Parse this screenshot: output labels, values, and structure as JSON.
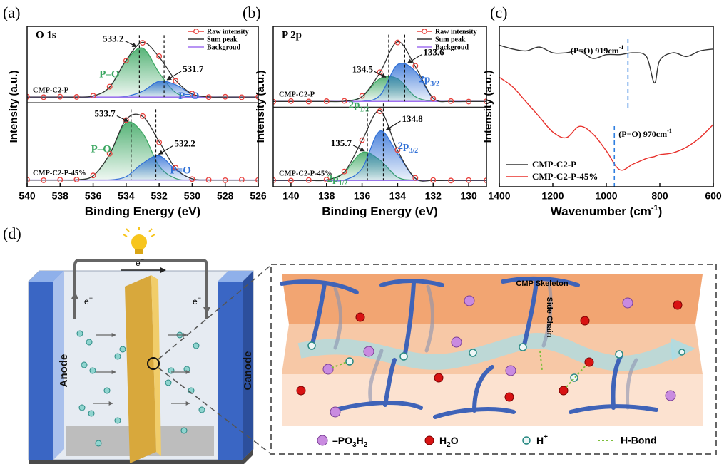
{
  "chart_data": [
    {
      "type": "xps",
      "panel_label": "(a)",
      "title": "O 1s",
      "xlabel": "Binding Energy (eV)",
      "ylabel": "Intensity (a.u.)",
      "xlim": [
        540,
        526
      ],
      "xticks": [
        540,
        538,
        536,
        534,
        532,
        530,
        528,
        526
      ],
      "ylim": [
        -0.08,
        1.85
      ],
      "legend": [
        {
          "name": "Raw intensity",
          "color": "#e8413c"
        },
        {
          "name": "Sum peak",
          "color": "#333333"
        },
        {
          "name": "Backgroud",
          "color": "#a070f0"
        }
      ],
      "x": [
        540,
        539,
        538,
        537,
        536,
        535,
        534,
        533,
        532,
        531,
        530,
        529,
        528,
        527,
        526
      ],
      "spectra": [
        {
          "label": "CMP-C2-P",
          "background": [
            1,
            1,
            1,
            1,
            1,
            1,
            1,
            1,
            1,
            1,
            1,
            1,
            1,
            1,
            1
          ],
          "raw": [
            1.003,
            0.998,
            1.004,
            1.001,
            1.016,
            1.125,
            1.437,
            1.652,
            1.49,
            1.194,
            1.041,
            0.999,
            1.003,
            0.997,
            1.002
          ],
          "sum": [
            1,
            1,
            1,
            1,
            1.012,
            1.119,
            1.444,
            1.658,
            1.481,
            1.201,
            1.038,
            1.002,
            1,
            1,
            1
          ],
          "peaks": [
            {
              "label": "P–O",
              "center": 533.2,
              "color": "#3aa660",
              "values": [
                1,
                1,
                1,
                1,
                1.012,
                1.119,
                1.436,
                1.588,
                1.292,
                1.053,
                1.004,
                1,
                1,
                1,
                1
              ]
            },
            {
              "label": "P=O",
              "center": 531.7,
              "color": "#2f6fd6",
              "values": [
                1,
                1,
                1,
                1,
                1,
                1,
                1.008,
                1.07,
                1.189,
                1.148,
                1.034,
                1.002,
                1,
                1,
                1
              ]
            }
          ]
        },
        {
          "label": "CMP-C2-P-45%",
          "background": [
            0,
            0,
            0,
            0,
            0,
            0,
            0,
            0,
            0,
            0,
            0,
            0,
            0,
            0,
            0
          ],
          "raw": [
            0.004,
            -0.002,
            0.003,
            0.006,
            0.055,
            0.318,
            0.722,
            0.771,
            0.455,
            0.148,
            0.012,
            0.003,
            -0.002,
            0.004,
            0.001
          ],
          "sum": [
            0,
            0,
            0,
            0.003,
            0.051,
            0.312,
            0.729,
            0.766,
            0.463,
            0.142,
            0.016,
            0.001,
            0,
            0,
            0
          ],
          "peaks": [
            {
              "label": "P–O",
              "center": 533.7,
              "color": "#3aa660",
              "values": [
                0,
                0,
                0,
                0.003,
                0.051,
                0.31,
                0.688,
                0.564,
                0.17,
                0.019,
                0.001,
                0,
                0,
                0,
                0
              ]
            },
            {
              "label": "P=O",
              "center": 532.2,
              "color": "#2f6fd6",
              "values": [
                0,
                0,
                0,
                0,
                0,
                0.002,
                0.041,
                0.202,
                0.293,
                0.123,
                0.015,
                0.001,
                0,
                0,
                0
              ]
            }
          ]
        }
      ]
    },
    {
      "type": "xps",
      "panel_label": "(b)",
      "title": "P 2p",
      "xlabel": "Binding Energy (eV)",
      "ylabel": "Intensity (a.u.)",
      "xlim": [
        141,
        129
      ],
      "xticks": [
        140,
        138,
        136,
        134,
        132,
        130
      ],
      "ylim": [
        -0.08,
        1.95
      ],
      "legend": [
        {
          "name": "Raw intensity",
          "color": "#e8413c"
        },
        {
          "name": "Sum peak",
          "color": "#333333"
        },
        {
          "name": "Backgroud",
          "color": "#a070f0"
        }
      ],
      "x": [
        141,
        140,
        139,
        138,
        137,
        136,
        135,
        134,
        133,
        132,
        131,
        130,
        129
      ],
      "spectra": [
        {
          "label": "CMP-C2-P",
          "background": [
            1,
            1,
            1,
            1,
            1,
            1,
            1,
            1,
            1,
            1,
            1,
            1,
            1
          ],
          "raw": [
            0.996,
            1.004,
            0.999,
            1.003,
            1.007,
            1.07,
            1.37,
            1.746,
            1.45,
            1.036,
            1.004,
            0.998,
            1.002
          ],
          "sum": [
            1,
            1,
            1,
            1,
            1.003,
            1.062,
            1.362,
            1.755,
            1.441,
            1.043,
            1.001,
            1,
            1
          ],
          "peaks": [
            {
              "label": "2p",
              "subscript": "1/2",
              "center": 134.5,
              "color": "#3aa660",
              "values": [
                1,
                1,
                1,
                1,
                1.003,
                1.06,
                1.288,
                1.288,
                1.06,
                1.003,
                1,
                1,
                1
              ]
            },
            {
              "label": "2p",
              "subscript": "3/2",
              "center": 133.6,
              "color": "#2f6fd6",
              "values": [
                1,
                1,
                1,
                1,
                1,
                1.002,
                1.074,
                1.467,
                1.381,
                1.04,
                1.001,
                1,
                1
              ]
            }
          ]
        },
        {
          "label": "CMP-C2-P-45%",
          "background": [
            0,
            0,
            0,
            0,
            0,
            0,
            0,
            0,
            0,
            0,
            0,
            0,
            0
          ],
          "raw": [
            0.003,
            -0.003,
            0.004,
            0.01,
            0.112,
            0.51,
            0.876,
            0.385,
            0.031,
            0.004,
            -0.002,
            0.003,
            0.001
          ],
          "sum": [
            0,
            0,
            0,
            0.006,
            0.106,
            0.504,
            0.883,
            0.378,
            0.027,
            0,
            0,
            0,
            0
          ],
          "peaks": [
            {
              "label": "2p",
              "subscript": "1/2",
              "center": 135.7,
              "color": "#3aa660",
              "values": [
                0,
                0,
                0,
                0.006,
                0.101,
                0.354,
                0.259,
                0.04,
                0.003,
                0,
                0,
                0,
                0
              ]
            },
            {
              "label": "2p",
              "subscript": "3/2",
              "center": 134.8,
              "color": "#2f6fd6",
              "values": [
                0,
                0,
                0,
                0,
                0.005,
                0.15,
                0.624,
                0.338,
                0.024,
                0,
                0,
                0,
                0
              ]
            }
          ]
        }
      ]
    },
    {
      "type": "line",
      "panel_label": "(c)",
      "xlabel": "Wavenumber (cm",
      "xlabel_sup": "-1",
      "xlabel_end": ")",
      "ylabel": "Intensity (a.u.)",
      "xlim": [
        1400,
        600
      ],
      "xticks": [
        1400,
        1200,
        1000,
        800,
        600
      ],
      "ylim": [
        0.15,
        1.0
      ],
      "legend_loc": "lower left",
      "x": [
        1400,
        1350,
        1300,
        1250,
        1200,
        1150,
        1100,
        1050,
        1000,
        950,
        900,
        850,
        820,
        800,
        750,
        700,
        650,
        600
      ],
      "series": [
        {
          "name": "CMP-C2-P",
          "color": "#333333",
          "values": [
            0.9,
            0.88,
            0.87,
            0.89,
            0.86,
            0.86,
            0.87,
            0.83,
            0.85,
            0.85,
            0.86,
            0.84,
            0.7,
            0.82,
            0.86,
            0.84,
            0.87,
            0.88
          ]
        },
        {
          "name": "CMP-C2-P-45%",
          "color": "#e8312c",
          "values": [
            0.73,
            0.68,
            0.6,
            0.52,
            0.44,
            0.41,
            0.47,
            0.43,
            0.34,
            0.24,
            0.27,
            0.3,
            0.31,
            0.32,
            0.33,
            0.36,
            0.41,
            0.48
          ]
        }
      ],
      "markers": [
        {
          "x": 919,
          "label": "(P=O) 919cm",
          "sup": "-1",
          "color": "#2f7fe0"
        },
        {
          "x": 970,
          "label": "(P=O) 970cm",
          "sup": "-1",
          "color": "#2f7fe0"
        }
      ]
    }
  ],
  "diagram": {
    "panel_label": "(d)",
    "anode": "Anode",
    "cathode": "Canode",
    "electron": "e",
    "electron_sup": "−",
    "skeleton": "CMP Skeleton",
    "side_chain": "Side Chain",
    "legend": [
      {
        "parts": [
          "–PO",
          "3",
          "H",
          "2"
        ]
      },
      {
        "parts": [
          "H",
          "2",
          "O"
        ]
      },
      {
        "parts": [
          "H",
          "+"
        ]
      },
      {
        "parts": [
          "H-Bond"
        ]
      }
    ]
  }
}
